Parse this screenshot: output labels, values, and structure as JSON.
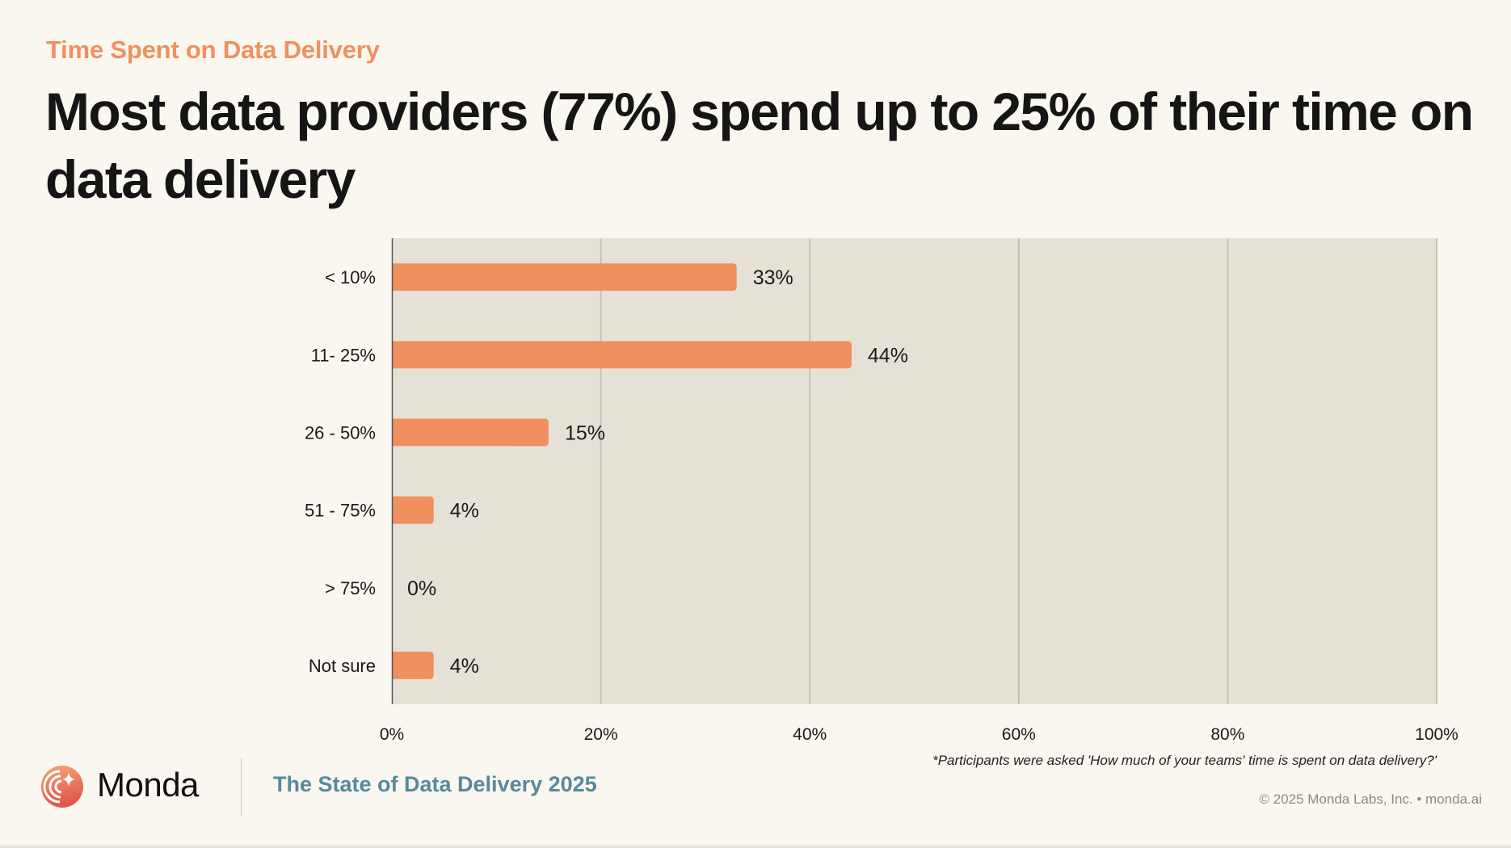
{
  "header": {
    "subtitle": "Time Spent on Data Delivery",
    "title": "Most data providers (77%) spend up to 25% of their time on data delivery"
  },
  "chart_data": {
    "type": "bar",
    "orientation": "horizontal",
    "categories": [
      "< 10%",
      "11- 25%",
      "26 - 50%",
      "51 - 75%",
      "> 75%",
      "Not sure"
    ],
    "values": [
      33,
      44,
      15,
      4,
      0,
      4
    ],
    "value_labels": [
      "33%",
      "44%",
      "15%",
      "4%",
      "0%",
      "4%"
    ],
    "title": "Time Spent on Data Delivery",
    "xlabel": "",
    "ylabel": "",
    "xlim": [
      0,
      100
    ],
    "xticks": [
      0,
      20,
      40,
      60,
      80,
      100
    ],
    "xtick_labels": [
      "0%",
      "20%",
      "40%",
      "60%",
      "80%",
      "100%"
    ],
    "grid": true,
    "legend": "none",
    "bar_color": "#f0905f",
    "plot_background": "#e5e1d6"
  },
  "footnote": "*Participants were asked 'How much of your teams' time is spent on data delivery?'",
  "footer": {
    "brand": "Monda",
    "report_title": "The State of Data Delivery 2025",
    "copyright": "© 2025 Monda Labs, Inc. • monda.ai"
  },
  "colors": {
    "accent": "#f0905f",
    "report_title": "#568a9c",
    "background": "#faf7f0"
  }
}
